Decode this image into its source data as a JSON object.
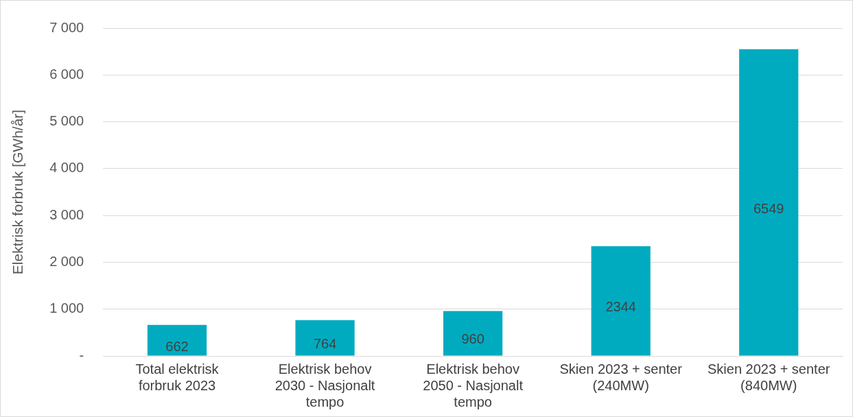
{
  "chart_data": {
    "type": "bar",
    "ylabel": "Elektrisk forbruk [GWh/år]",
    "categories": [
      "Total elektrisk forbruk 2023",
      "Elektrisk behov 2030 - Nasjonalt tempo",
      "Elektrisk behov 2050 - Nasjonalt tempo",
      "Skien 2023 + senter (240MW)",
      "Skien 2023 + senter (840MW)"
    ],
    "values": [
      662,
      764,
      960,
      2344,
      6549
    ],
    "color": "#00abc0",
    "ylim": [
      0,
      7000
    ],
    "yticks": [
      {
        "value": 0,
        "label": "-"
      },
      {
        "value": 1000,
        "label": "1 000"
      },
      {
        "value": 2000,
        "label": "2 000"
      },
      {
        "value": 3000,
        "label": "3 000"
      },
      {
        "value": 4000,
        "label": "4 000"
      },
      {
        "value": 5000,
        "label": "5 000"
      },
      {
        "value": 6000,
        "label": "6 000"
      },
      {
        "value": 7000,
        "label": "7 000"
      }
    ],
    "grid": "y",
    "data_labels": true
  }
}
